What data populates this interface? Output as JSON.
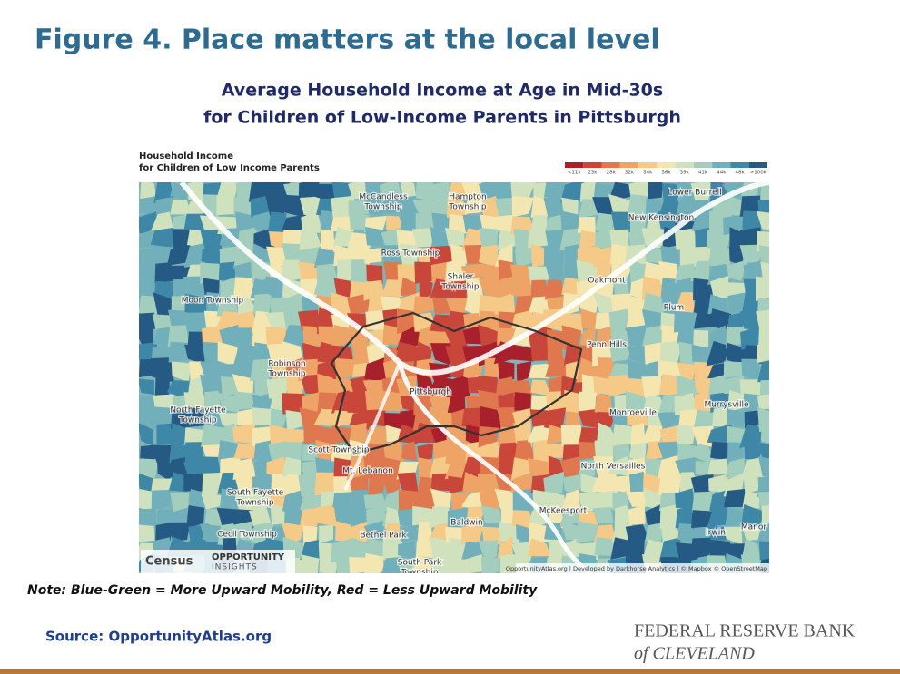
{
  "title": "Figure 4. Place matters at the local level",
  "subtitle": [
    "Average Household Income at Age in Mid-30s",
    "for Children of Low-Income Parents in Pittsburgh"
  ],
  "map": {
    "heading": [
      "Household Income",
      "for Children of Low Income Parents"
    ],
    "legend": {
      "labels": [
        "<11k",
        "23k",
        "28k",
        "32k",
        "34k",
        "36k",
        "39k",
        "41k",
        "44k",
        "48k",
        ">100k"
      ],
      "colors": [
        "#a8202c",
        "#c9473a",
        "#e0784f",
        "#eea467",
        "#f5c987",
        "#f3e6b0",
        "#cfe2bd",
        "#a3cdbd",
        "#71afba",
        "#3f87a6",
        "#245a84"
      ]
    },
    "places": [
      [
        "McCandless",
        "Township"
      ],
      [
        "Hampton",
        "Township"
      ],
      [
        "Lower Burrell"
      ],
      [
        "New Kensington"
      ],
      [
        "Ross Township"
      ],
      [
        "Shaler",
        "Township"
      ],
      [
        "Oakmont"
      ],
      [
        "Moon Township"
      ],
      [
        "Plum"
      ],
      [
        "Penn Hills"
      ],
      [
        "Robinson",
        "Township"
      ],
      [
        "Pittsburgh"
      ],
      [
        "Monroeville"
      ],
      [
        "North Fayette",
        "Township"
      ],
      [
        "Murrysville"
      ],
      [
        "Scott Township"
      ],
      [
        "Mt. Lebanon"
      ],
      [
        "North Versailles"
      ],
      [
        "South Fayette",
        "Township"
      ],
      [
        "McKeesport"
      ],
      [
        "Baldwin"
      ],
      [
        "Cecil Township"
      ],
      [
        "Bethel Park"
      ],
      [
        "South Park",
        "Township"
      ],
      [
        "Irwin"
      ],
      [
        "Manor"
      ]
    ],
    "attribution": "OpportunityAtlas.org | Developed by Darkhorse Analytics | © Mapbox © OpenStreetMap",
    "logos": [
      "Census",
      "OPPORTUNITY",
      "INSIGHTS"
    ]
  },
  "note": "Note: Blue-Green = More Upward Mobility, Red = Less Upward Mobility",
  "source": "Source: OpportunityAtlas.org",
  "brand": [
    "FEDERAL RESERVE BANK",
    "of CLEVELAND"
  ]
}
